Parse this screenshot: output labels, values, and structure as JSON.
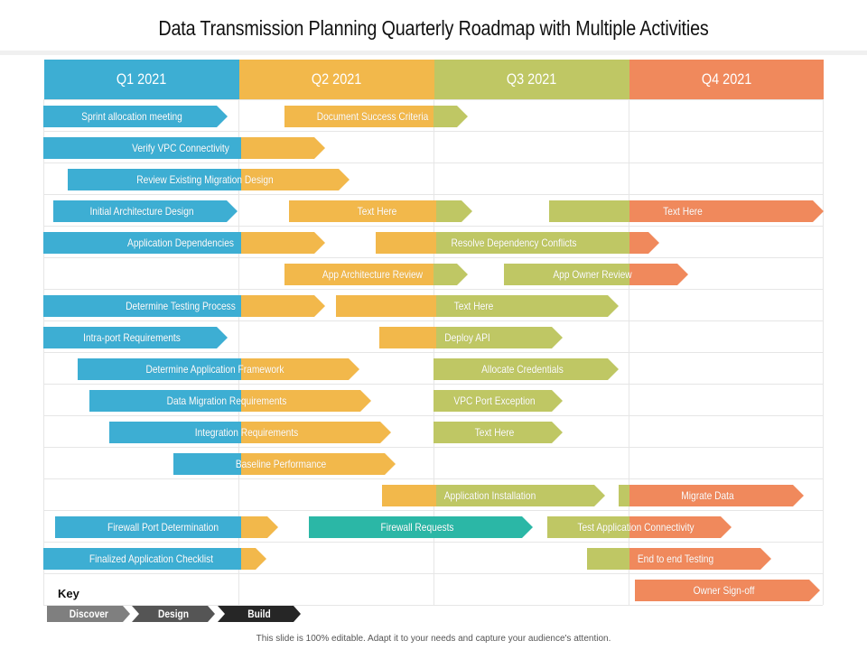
{
  "title": "Data Transmission Planning Quarterly Roadmap with Multiple Activities",
  "colors": {
    "blue": "#3daed3",
    "yellow": "#f2b84b",
    "green": "#bfc764",
    "orange": "#f0895c",
    "teal": "#2bb7a6",
    "tealLight": "#3cc0c8"
  },
  "quarters": [
    "Q1 2021",
    "Q2 2021",
    "Q3 2021",
    "Q4 2021"
  ],
  "activities": [
    {
      "label": "Sprint allocation meeting",
      "row": 0,
      "x0": 48,
      "x1": 252,
      "segs": [
        [
          48,
          252,
          "blue"
        ]
      ]
    },
    {
      "label": "Document Success Criteria",
      "row": 0,
      "x0": 315,
      "x1": 518,
      "segs": [
        [
          315,
          480,
          "yellow"
        ],
        [
          480,
          518,
          "green"
        ]
      ]
    },
    {
      "label": "Verify VPC Connectivity",
      "row": 1,
      "x0": 48,
      "x1": 360,
      "segs": [
        [
          48,
          267,
          "blue"
        ],
        [
          267,
          360,
          "yellow"
        ]
      ]
    },
    {
      "label": "Review Existing Migration Design",
      "row": 2,
      "x0": 75,
      "x1": 387,
      "segs": [
        [
          75,
          267,
          "blue"
        ],
        [
          267,
          387,
          "yellow"
        ]
      ]
    },
    {
      "label": "Initial Architecture Design",
      "row": 3,
      "x0": 59,
      "x1": 263,
      "segs": [
        [
          59,
          263,
          "blue"
        ]
      ]
    },
    {
      "label": "Text Here",
      "row": 3,
      "x0": 320,
      "x1": 523,
      "segs": [
        [
          320,
          483,
          "yellow"
        ],
        [
          483,
          523,
          "green"
        ]
      ]
    },
    {
      "label": "Text Here",
      "row": 3,
      "x0": 608,
      "x1": 912,
      "segs": [
        [
          608,
          697,
          "green"
        ],
        [
          697,
          912,
          "orange"
        ]
      ]
    },
    {
      "label": "Application Dependencies",
      "row": 4,
      "x0": 48,
      "x1": 360,
      "segs": [
        [
          48,
          267,
          "blue"
        ],
        [
          267,
          360,
          "yellow"
        ]
      ]
    },
    {
      "label": "Resolve Dependency  Conflicts",
      "row": 4,
      "x0": 416,
      "x1": 730,
      "segs": [
        [
          416,
          483,
          "yellow"
        ],
        [
          483,
          697,
          "green"
        ],
        [
          697,
          730,
          "orange"
        ]
      ]
    },
    {
      "label": "App Architecture Review",
      "row": 5,
      "x0": 315,
      "x1": 518,
      "segs": [
        [
          315,
          480,
          "yellow"
        ],
        [
          480,
          518,
          "green"
        ]
      ]
    },
    {
      "label": "App Owner Review",
      "row": 5,
      "x0": 558,
      "x1": 762,
      "segs": [
        [
          558,
          697,
          "green"
        ],
        [
          697,
          762,
          "orange"
        ]
      ]
    },
    {
      "label": "Determine Testing Process",
      "row": 6,
      "x0": 48,
      "x1": 360,
      "segs": [
        [
          48,
          267,
          "blue"
        ],
        [
          267,
          360,
          "yellow"
        ]
      ]
    },
    {
      "label": "Text Here",
      "row": 6,
      "x0": 372,
      "x1": 685,
      "segs": [
        [
          372,
          483,
          "yellow"
        ],
        [
          483,
          685,
          "green"
        ]
      ]
    },
    {
      "label": "Intra-port Requirements",
      "row": 7,
      "x0": 48,
      "x1": 252,
      "segs": [
        [
          48,
          252,
          "blue"
        ]
      ]
    },
    {
      "label": "Deploy API",
      "row": 7,
      "x0": 420,
      "x1": 623,
      "segs": [
        [
          420,
          483,
          "yellow"
        ],
        [
          483,
          623,
          "green"
        ]
      ]
    },
    {
      "label": "Determine Application Framework",
      "row": 8,
      "x0": 86,
      "x1": 398,
      "segs": [
        [
          86,
          267,
          "blue"
        ],
        [
          267,
          398,
          "yellow"
        ]
      ]
    },
    {
      "label": "Allocate Credentials",
      "row": 8,
      "x0": 480,
      "x1": 685,
      "segs": [
        [
          480,
          685,
          "green"
        ]
      ]
    },
    {
      "label": "Data Migration Requirements",
      "row": 9,
      "x0": 99,
      "x1": 411,
      "segs": [
        [
          99,
          267,
          "blue"
        ],
        [
          267,
          411,
          "yellow"
        ]
      ]
    },
    {
      "label": "VPC Port Exception",
      "row": 9,
      "x0": 480,
      "x1": 623,
      "segs": [
        [
          480,
          623,
          "green"
        ]
      ]
    },
    {
      "label": "Integration Requirements",
      "row": 10,
      "x0": 121,
      "x1": 433,
      "segs": [
        [
          121,
          267,
          "blue"
        ],
        [
          267,
          433,
          "yellow"
        ]
      ]
    },
    {
      "label": "Text Here",
      "row": 10,
      "x0": 480,
      "x1": 623,
      "segs": [
        [
          480,
          623,
          "green"
        ]
      ]
    },
    {
      "label": "Baseline Performance",
      "row": 11,
      "x0": 192,
      "x1": 438,
      "segs": [
        [
          192,
          267,
          "blue"
        ],
        [
          267,
          438,
          "yellow"
        ]
      ]
    },
    {
      "label": "Application Installation",
      "row": 12,
      "x0": 423,
      "x1": 670,
      "segs": [
        [
          423,
          483,
          "yellow"
        ],
        [
          483,
          670,
          "green"
        ]
      ]
    },
    {
      "label": "Migrate Data",
      "row": 12,
      "x0": 685,
      "x1": 890,
      "segs": [
        [
          685,
          697,
          "green"
        ],
        [
          697,
          890,
          "orange"
        ]
      ]
    },
    {
      "label": "Firewall Port Determination",
      "row": 13,
      "x0": 61,
      "x1": 308,
      "segs": [
        [
          61,
          267,
          "blue"
        ],
        [
          267,
          308,
          "yellow"
        ]
      ]
    },
    {
      "label": "Firewall Requests",
      "row": 13,
      "x0": 342,
      "x1": 590,
      "segs": [
        [
          342,
          590,
          "teal"
        ]
      ]
    },
    {
      "label": "Test Application Connectivity",
      "row": 13,
      "x0": 606,
      "x1": 810,
      "segs": [
        [
          606,
          697,
          "green"
        ],
        [
          697,
          810,
          "orange"
        ]
      ]
    },
    {
      "label": "Finalized Application Checklist",
      "row": 14,
      "x0": 48,
      "x1": 295,
      "segs": [
        [
          48,
          267,
          "blue"
        ],
        [
          267,
          295,
          "yellow"
        ]
      ]
    },
    {
      "label": "End to end Testing",
      "row": 14,
      "x0": 650,
      "x1": 854,
      "segs": [
        [
          650,
          697,
          "green"
        ],
        [
          697,
          854,
          "orange"
        ]
      ]
    },
    {
      "label": "Owner Sign-off",
      "row": 15,
      "x0": 703,
      "x1": 908,
      "segs": [
        [
          703,
          908,
          "orange"
        ]
      ]
    }
  ],
  "key": {
    "title": "Key",
    "items": [
      {
        "label": "Discover",
        "color": "#7f7f7f"
      },
      {
        "label": "Design",
        "color": "#555555"
      },
      {
        "label": "Build",
        "color": "#262626"
      }
    ]
  },
  "footer": "This slide is 100% editable. Adapt it to your needs and capture your audience's attention."
}
